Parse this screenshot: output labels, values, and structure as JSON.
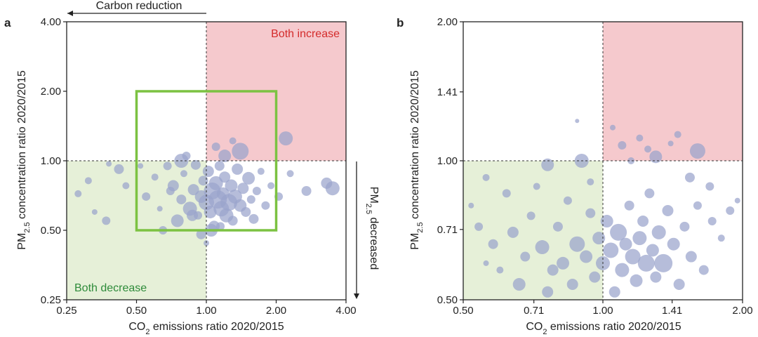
{
  "chart_data": [
    {
      "panel": "a",
      "type": "scatter",
      "xlabel": "CO2 emissions ratio 2020/2015",
      "ylabel": "PM2.5 concentration ratio 2020/2015",
      "xscale": "log",
      "yscale": "log",
      "xlim": [
        0.25,
        4.0
      ],
      "ylim": [
        0.25,
        4.0
      ],
      "xticks": [
        "0.25",
        "0.50",
        "1.00",
        "2.00",
        "4.00"
      ],
      "yticks": [
        "0.25",
        "0.50",
        "1.00",
        "2.00",
        "4.00"
      ],
      "annotations": {
        "top": "Carbon reduction",
        "right": "PM2.5 decreased",
        "top_right_region": "Both increase",
        "bottom_left_region": "Both decrease"
      },
      "regions": {
        "top_right_color": "#f5c9cd",
        "bottom_left_color": "#e6f0d8",
        "text_red": "#d42b2b",
        "text_green": "#2e8b3a"
      },
      "highlight_box": {
        "x": [
          0.5,
          2.0
        ],
        "y": [
          0.5,
          2.0
        ],
        "color": "#7cc242"
      },
      "grid": false,
      "point_color": "#9aa3cc",
      "points": [
        {
          "x": 0.28,
          "y": 0.72,
          "s": 5
        },
        {
          "x": 0.31,
          "y": 0.82,
          "s": 5
        },
        {
          "x": 0.33,
          "y": 0.6,
          "s": 4
        },
        {
          "x": 0.37,
          "y": 0.55,
          "s": 6
        },
        {
          "x": 0.42,
          "y": 0.92,
          "s": 7
        },
        {
          "x": 0.38,
          "y": 0.97,
          "s": 4
        },
        {
          "x": 0.45,
          "y": 0.78,
          "s": 5
        },
        {
          "x": 0.52,
          "y": 0.95,
          "s": 4
        },
        {
          "x": 0.55,
          "y": 0.7,
          "s": 6
        },
        {
          "x": 0.6,
          "y": 0.85,
          "s": 5
        },
        {
          "x": 0.63,
          "y": 0.62,
          "s": 4
        },
        {
          "x": 0.68,
          "y": 0.95,
          "s": 6
        },
        {
          "x": 0.72,
          "y": 0.78,
          "s": 8
        },
        {
          "x": 0.75,
          "y": 0.55,
          "s": 9
        },
        {
          "x": 0.78,
          "y": 0.68,
          "s": 7
        },
        {
          "x": 0.8,
          "y": 0.88,
          "s": 5
        },
        {
          "x": 0.82,
          "y": 1.05,
          "s": 6
        },
        {
          "x": 0.85,
          "y": 0.62,
          "s": 10
        },
        {
          "x": 0.88,
          "y": 0.75,
          "s": 8
        },
        {
          "x": 0.9,
          "y": 0.96,
          "s": 7
        },
        {
          "x": 0.92,
          "y": 0.58,
          "s": 6
        },
        {
          "x": 0.95,
          "y": 0.7,
          "s": 9
        },
        {
          "x": 0.97,
          "y": 0.82,
          "s": 7
        },
        {
          "x": 1.0,
          "y": 0.66,
          "s": 11
        },
        {
          "x": 1.02,
          "y": 0.9,
          "s": 8
        },
        {
          "x": 1.04,
          "y": 0.6,
          "s": 9
        },
        {
          "x": 1.06,
          "y": 0.74,
          "s": 12
        },
        {
          "x": 1.08,
          "y": 0.52,
          "s": 8
        },
        {
          "x": 1.1,
          "y": 0.8,
          "s": 10
        },
        {
          "x": 1.12,
          "y": 0.68,
          "s": 13
        },
        {
          "x": 1.14,
          "y": 0.95,
          "s": 7
        },
        {
          "x": 1.16,
          "y": 0.62,
          "s": 11
        },
        {
          "x": 1.18,
          "y": 0.72,
          "s": 9
        },
        {
          "x": 1.2,
          "y": 0.85,
          "s": 8
        },
        {
          "x": 1.22,
          "y": 0.58,
          "s": 10
        },
        {
          "x": 1.25,
          "y": 0.66,
          "s": 12
        },
        {
          "x": 1.28,
          "y": 0.78,
          "s": 9
        },
        {
          "x": 1.3,
          "y": 0.55,
          "s": 7
        },
        {
          "x": 1.33,
          "y": 0.7,
          "s": 10
        },
        {
          "x": 1.36,
          "y": 0.92,
          "s": 8
        },
        {
          "x": 1.4,
          "y": 0.64,
          "s": 9
        },
        {
          "x": 1.44,
          "y": 0.76,
          "s": 8
        },
        {
          "x": 1.48,
          "y": 0.6,
          "s": 7
        },
        {
          "x": 1.52,
          "y": 0.84,
          "s": 9
        },
        {
          "x": 1.56,
          "y": 0.68,
          "s": 6
        },
        {
          "x": 1.6,
          "y": 0.56,
          "s": 7
        },
        {
          "x": 1.65,
          "y": 0.74,
          "s": 6
        },
        {
          "x": 1.72,
          "y": 0.9,
          "s": 5
        },
        {
          "x": 1.8,
          "y": 0.64,
          "s": 6
        },
        {
          "x": 1.9,
          "y": 0.78,
          "s": 5
        },
        {
          "x": 2.05,
          "y": 0.7,
          "s": 6
        },
        {
          "x": 2.3,
          "y": 0.88,
          "s": 5
        },
        {
          "x": 2.7,
          "y": 0.74,
          "s": 7
        },
        {
          "x": 3.3,
          "y": 0.8,
          "s": 8
        },
        {
          "x": 3.5,
          "y": 0.76,
          "s": 10
        },
        {
          "x": 2.2,
          "y": 1.25,
          "s": 10
        },
        {
          "x": 1.4,
          "y": 1.1,
          "s": 12
        },
        {
          "x": 1.2,
          "y": 1.05,
          "s": 9
        },
        {
          "x": 1.1,
          "y": 1.15,
          "s": 6
        },
        {
          "x": 1.3,
          "y": 1.22,
          "s": 5
        },
        {
          "x": 0.78,
          "y": 1.0,
          "s": 10
        },
        {
          "x": 0.65,
          "y": 0.5,
          "s": 6
        },
        {
          "x": 0.95,
          "y": 0.48,
          "s": 7
        },
        {
          "x": 1.0,
          "y": 0.44,
          "s": 4
        },
        {
          "x": 1.05,
          "y": 0.5,
          "s": 9
        },
        {
          "x": 1.15,
          "y": 0.52,
          "s": 6
        },
        {
          "x": 0.7,
          "y": 0.74,
          "s": 6
        },
        {
          "x": 0.87,
          "y": 0.58,
          "s": 8
        }
      ]
    },
    {
      "panel": "b",
      "type": "scatter",
      "xlabel": "CO2 emissions ratio 2020/2015",
      "ylabel": "PM2.5 concentration ratio 2020/2015",
      "xscale": "log",
      "yscale": "log",
      "xlim": [
        0.5,
        2.0
      ],
      "ylim": [
        0.5,
        2.0
      ],
      "xticks": [
        "0.50",
        "0.71",
        "1.00",
        "1.41",
        "2.00"
      ],
      "yticks": [
        "0.50",
        "0.71",
        "1.00",
        "1.41",
        "2.00"
      ],
      "grid": false,
      "point_color": "#9aa3cc",
      "points": [
        {
          "x": 0.52,
          "y": 0.8,
          "s": 4
        },
        {
          "x": 0.54,
          "y": 0.72,
          "s": 6
        },
        {
          "x": 0.56,
          "y": 0.92,
          "s": 5
        },
        {
          "x": 0.58,
          "y": 0.66,
          "s": 7
        },
        {
          "x": 0.6,
          "y": 0.58,
          "s": 5
        },
        {
          "x": 0.62,
          "y": 0.85,
          "s": 6
        },
        {
          "x": 0.64,
          "y": 0.7,
          "s": 8
        },
        {
          "x": 0.66,
          "y": 0.54,
          "s": 9
        },
        {
          "x": 0.68,
          "y": 0.62,
          "s": 7
        },
        {
          "x": 0.7,
          "y": 0.76,
          "s": 6
        },
        {
          "x": 0.72,
          "y": 0.88,
          "s": 5
        },
        {
          "x": 0.74,
          "y": 0.65,
          "s": 10
        },
        {
          "x": 0.76,
          "y": 0.98,
          "s": 9
        },
        {
          "x": 0.78,
          "y": 0.58,
          "s": 8
        },
        {
          "x": 0.8,
          "y": 0.72,
          "s": 7
        },
        {
          "x": 0.82,
          "y": 0.6,
          "s": 9
        },
        {
          "x": 0.84,
          "y": 0.82,
          "s": 6
        },
        {
          "x": 0.86,
          "y": 0.54,
          "s": 8
        },
        {
          "x": 0.88,
          "y": 0.66,
          "s": 11
        },
        {
          "x": 0.9,
          "y": 1.0,
          "s": 10
        },
        {
          "x": 0.92,
          "y": 0.62,
          "s": 9
        },
        {
          "x": 0.94,
          "y": 0.77,
          "s": 7
        },
        {
          "x": 0.96,
          "y": 0.56,
          "s": 8
        },
        {
          "x": 0.98,
          "y": 0.68,
          "s": 9
        },
        {
          "x": 1.0,
          "y": 0.6,
          "s": 10
        },
        {
          "x": 1.02,
          "y": 0.74,
          "s": 9
        },
        {
          "x": 1.04,
          "y": 0.64,
          "s": 11
        },
        {
          "x": 1.06,
          "y": 0.52,
          "s": 8
        },
        {
          "x": 1.08,
          "y": 0.7,
          "s": 12
        },
        {
          "x": 1.1,
          "y": 0.58,
          "s": 10
        },
        {
          "x": 1.12,
          "y": 0.66,
          "s": 9
        },
        {
          "x": 1.14,
          "y": 0.8,
          "s": 7
        },
        {
          "x": 1.16,
          "y": 0.62,
          "s": 11
        },
        {
          "x": 1.18,
          "y": 0.55,
          "s": 9
        },
        {
          "x": 1.2,
          "y": 0.68,
          "s": 10
        },
        {
          "x": 1.22,
          "y": 0.74,
          "s": 8
        },
        {
          "x": 1.24,
          "y": 0.6,
          "s": 12
        },
        {
          "x": 1.26,
          "y": 0.85,
          "s": 7
        },
        {
          "x": 1.28,
          "y": 0.64,
          "s": 9
        },
        {
          "x": 1.3,
          "y": 0.56,
          "s": 8
        },
        {
          "x": 1.32,
          "y": 0.7,
          "s": 10
        },
        {
          "x": 1.35,
          "y": 0.6,
          "s": 13
        },
        {
          "x": 1.38,
          "y": 0.78,
          "s": 8
        },
        {
          "x": 1.42,
          "y": 0.66,
          "s": 9
        },
        {
          "x": 1.46,
          "y": 0.54,
          "s": 8
        },
        {
          "x": 1.5,
          "y": 0.72,
          "s": 7
        },
        {
          "x": 1.55,
          "y": 0.62,
          "s": 8
        },
        {
          "x": 1.6,
          "y": 0.8,
          "s": 6
        },
        {
          "x": 1.65,
          "y": 0.58,
          "s": 7
        },
        {
          "x": 1.72,
          "y": 0.74,
          "s": 6
        },
        {
          "x": 1.8,
          "y": 0.68,
          "s": 5
        },
        {
          "x": 1.88,
          "y": 0.78,
          "s": 6
        },
        {
          "x": 1.95,
          "y": 0.82,
          "s": 4
        },
        {
          "x": 1.6,
          "y": 1.05,
          "s": 11
        },
        {
          "x": 1.3,
          "y": 1.02,
          "s": 9
        },
        {
          "x": 1.1,
          "y": 1.08,
          "s": 6
        },
        {
          "x": 1.2,
          "y": 1.12,
          "s": 5
        },
        {
          "x": 1.05,
          "y": 1.18,
          "s": 4
        },
        {
          "x": 1.45,
          "y": 1.14,
          "s": 5
        },
        {
          "x": 0.88,
          "y": 1.22,
          "s": 3
        },
        {
          "x": 1.25,
          "y": 1.06,
          "s": 5
        },
        {
          "x": 1.4,
          "y": 1.09,
          "s": 4
        },
        {
          "x": 1.15,
          "y": 1.0,
          "s": 5
        },
        {
          "x": 0.76,
          "y": 0.52,
          "s": 8
        },
        {
          "x": 0.94,
          "y": 0.9,
          "s": 5
        },
        {
          "x": 1.54,
          "y": 0.92,
          "s": 7
        },
        {
          "x": 1.7,
          "y": 0.88,
          "s": 6
        },
        {
          "x": 0.56,
          "y": 0.6,
          "s": 4
        }
      ]
    }
  ]
}
